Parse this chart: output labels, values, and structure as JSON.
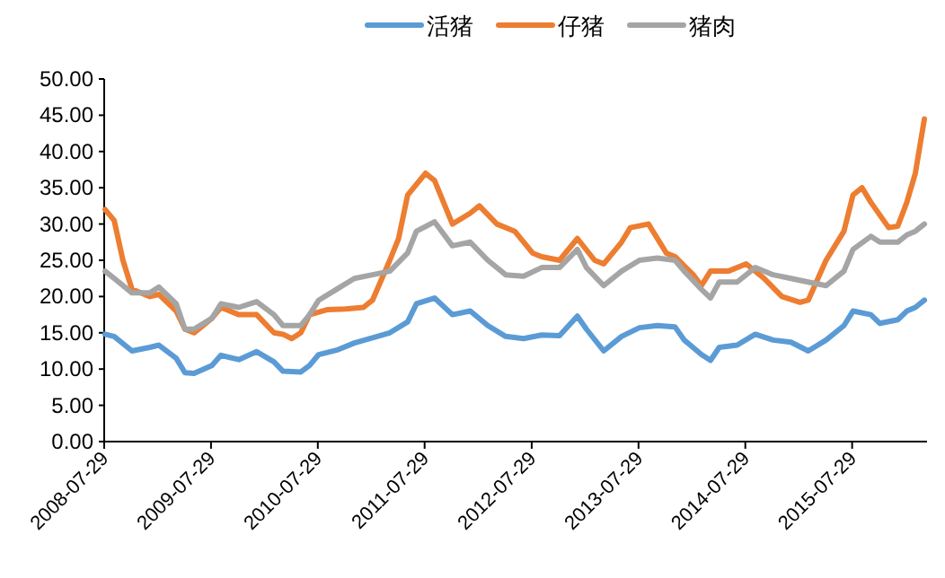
{
  "chart_data": {
    "type": "line",
    "xlim": [
      "2008-07-29",
      "2016-04-10"
    ],
    "xticks": [
      "2008-07-29",
      "2009-07-29",
      "2010-07-29",
      "2011-07-29",
      "2012-07-29",
      "2013-07-29",
      "2014-07-29",
      "2015-07-29"
    ],
    "ylim": [
      0,
      50
    ],
    "yticks": [
      {
        "value": 0,
        "label": "0.00"
      },
      {
        "value": 5,
        "label": "5.00"
      },
      {
        "value": 10,
        "label": "10.00"
      },
      {
        "value": 15,
        "label": "15.00"
      },
      {
        "value": 20,
        "label": "20.00"
      },
      {
        "value": 25,
        "label": "25.00"
      },
      {
        "value": 30,
        "label": "30.00"
      },
      {
        "value": 35,
        "label": "35.00"
      },
      {
        "value": 40,
        "label": "40.00"
      },
      {
        "value": 45,
        "label": "45.00"
      },
      {
        "value": 50,
        "label": "50.00"
      }
    ],
    "grid": false,
    "legend": "top",
    "marker": "none",
    "line_style": "solid",
    "series": [
      {
        "name": "活猪",
        "color": "#5b9bd5",
        "x": [
          "2008-08",
          "2008-09",
          "2008-11",
          "2009-01",
          "2009-02",
          "2009-04",
          "2009-05",
          "2009-06",
          "2009-08",
          "2009-09",
          "2009-11",
          "2010-01",
          "2010-03",
          "2010-04",
          "2010-06",
          "2010-07",
          "2010-08",
          "2010-10",
          "2010-12",
          "2011-02",
          "2011-04",
          "2011-06",
          "2011-07",
          "2011-09",
          "2011-11",
          "2012-01",
          "2012-03",
          "2012-05",
          "2012-07",
          "2012-09",
          "2012-11",
          "2013-01",
          "2013-02",
          "2013-04",
          "2013-06",
          "2013-08",
          "2013-10",
          "2013-12",
          "2014-01",
          "2014-03",
          "2014-04",
          "2014-05",
          "2014-07",
          "2014-09",
          "2014-11",
          "2015-01",
          "2015-03",
          "2015-05",
          "2015-07",
          "2015-08",
          "2015-10",
          "2015-11",
          "2016-01",
          "2016-02",
          "2016-03",
          "2016-04"
        ],
        "values": [
          14.8,
          14.5,
          12.5,
          13.0,
          13.3,
          11.5,
          9.5,
          9.4,
          10.5,
          11.9,
          11.3,
          12.4,
          11.0,
          9.7,
          9.6,
          10.5,
          12.0,
          12.6,
          13.6,
          14.3,
          15.0,
          16.5,
          19.0,
          19.8,
          17.5,
          18.0,
          16.0,
          14.5,
          14.2,
          14.7,
          14.6,
          17.3,
          15.5,
          12.5,
          14.5,
          15.7,
          16.0,
          15.8,
          14.0,
          12.0,
          11.2,
          13.0,
          13.3,
          14.8,
          14.0,
          13.7,
          12.5,
          14.0,
          16.0,
          18.0,
          17.5,
          16.3,
          16.8,
          18.0,
          18.5,
          19.5
        ]
      },
      {
        "name": "仔猪",
        "color": "#ed7d31",
        "x": [
          "2008-08",
          "2008-09",
          "2008-10",
          "2008-11",
          "2009-01",
          "2009-02",
          "2009-04",
          "2009-05",
          "2009-06",
          "2009-08",
          "2009-09",
          "2009-11",
          "2010-01",
          "2010-03",
          "2010-04",
          "2010-05",
          "2010-06",
          "2010-07",
          "2010-09",
          "2010-11",
          "2011-01",
          "2011-02",
          "2011-04",
          "2011-05",
          "2011-06",
          "2011-08",
          "2011-09",
          "2011-11",
          "2012-01",
          "2012-02",
          "2012-04",
          "2012-06",
          "2012-08",
          "2012-09",
          "2012-11",
          "2013-01",
          "2013-03",
          "2013-04",
          "2013-06",
          "2013-07",
          "2013-09",
          "2013-11",
          "2013-12",
          "2014-02",
          "2014-03",
          "2014-04",
          "2014-06",
          "2014-08",
          "2014-10",
          "2014-12",
          "2015-02",
          "2015-03",
          "2015-05",
          "2015-07",
          "2015-08",
          "2015-09",
          "2015-10",
          "2015-12",
          "2016-01",
          "2016-02",
          "2016-03",
          "2016-04"
        ],
        "values": [
          32.0,
          30.5,
          25.0,
          21.0,
          20.0,
          20.3,
          18.0,
          15.5,
          15.0,
          17.0,
          18.5,
          17.5,
          17.5,
          15.0,
          14.8,
          14.2,
          15.0,
          17.5,
          18.2,
          18.3,
          18.5,
          19.5,
          25.0,
          28.0,
          34.0,
          37.0,
          36.0,
          30.0,
          31.5,
          32.5,
          30.0,
          29.0,
          26.0,
          25.5,
          25.0,
          28.0,
          25.0,
          24.5,
          27.5,
          29.5,
          30.0,
          26.0,
          25.5,
          23.0,
          21.5,
          23.5,
          23.5,
          24.5,
          22.5,
          20.0,
          19.2,
          19.5,
          25.0,
          29.0,
          34.0,
          35.0,
          33.0,
          29.5,
          29.7,
          33.0,
          37.0,
          44.5
        ]
      },
      {
        "name": "猪肉",
        "color": "#a5a5a5",
        "x": [
          "2008-08",
          "2008-09",
          "2008-11",
          "2009-01",
          "2009-02",
          "2009-04",
          "2009-05",
          "2009-06",
          "2009-08",
          "2009-09",
          "2009-11",
          "2010-01",
          "2010-03",
          "2010-04",
          "2010-06",
          "2010-07",
          "2010-08",
          "2010-10",
          "2010-12",
          "2011-02",
          "2011-04",
          "2011-06",
          "2011-07",
          "2011-09",
          "2011-11",
          "2012-01",
          "2012-03",
          "2012-05",
          "2012-07",
          "2012-09",
          "2012-11",
          "2013-01",
          "2013-02",
          "2013-04",
          "2013-06",
          "2013-08",
          "2013-10",
          "2013-12",
          "2014-01",
          "2014-03",
          "2014-04",
          "2014-05",
          "2014-07",
          "2014-09",
          "2014-11",
          "2015-01",
          "2015-03",
          "2015-05",
          "2015-07",
          "2015-08",
          "2015-10",
          "2015-11",
          "2016-01",
          "2016-02",
          "2016-03",
          "2016-04"
        ],
        "values": [
          23.5,
          22.5,
          20.5,
          20.5,
          21.3,
          19.0,
          15.5,
          15.5,
          17.0,
          19.0,
          18.5,
          19.3,
          17.5,
          16.0,
          16.0,
          17.5,
          19.5,
          21.0,
          22.5,
          23.0,
          23.5,
          26.0,
          29.0,
          30.3,
          27.0,
          27.5,
          25.0,
          23.0,
          22.8,
          24.0,
          24.0,
          26.5,
          24.0,
          21.5,
          23.5,
          25.0,
          25.3,
          25.0,
          23.5,
          21.0,
          19.8,
          22.0,
          22.0,
          24.0,
          23.0,
          22.5,
          22.0,
          21.5,
          23.5,
          26.5,
          28.3,
          27.5,
          27.5,
          28.5,
          29.0,
          30.0
        ]
      }
    ]
  }
}
